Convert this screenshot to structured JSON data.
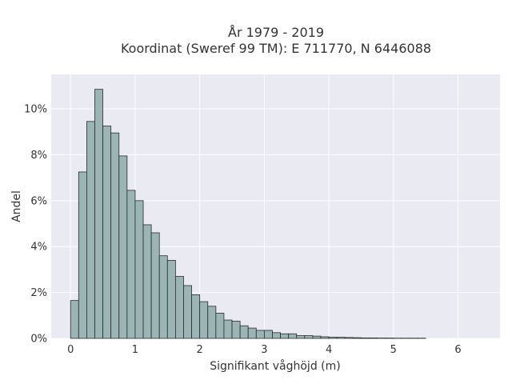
{
  "chart_data": {
    "type": "bar",
    "title_line1": "År 1979 - 2019",
    "title_line2": "Koordinat (Sweref 99 TM): E 711770, N 6446088",
    "xlabel": "Signifikant våghöjd (m)",
    "ylabel": "Andel",
    "xlim": [
      -0.3,
      6.65
    ],
    "ylim": [
      0,
      11.5
    ],
    "x_ticks": [
      0,
      1,
      2,
      3,
      4,
      5,
      6
    ],
    "x_tick_labels": [
      "0",
      "1",
      "2",
      "3",
      "4",
      "5",
      "6"
    ],
    "y_ticks": [
      0,
      2,
      4,
      6,
      8,
      10
    ],
    "y_tick_labels": [
      "0%",
      "2%",
      "4%",
      "6%",
      "8%",
      "10%"
    ],
    "grid": true,
    "bin_width": 0.125,
    "bin_starts": [
      0.0,
      0.125,
      0.25,
      0.375,
      0.5,
      0.625,
      0.75,
      0.875,
      1.0,
      1.125,
      1.25,
      1.375,
      1.5,
      1.625,
      1.75,
      1.875,
      2.0,
      2.125,
      2.25,
      2.375,
      2.5,
      2.625,
      2.75,
      2.875,
      3.0,
      3.125,
      3.25,
      3.375,
      3.5,
      3.625,
      3.75,
      3.875,
      4.0,
      4.125,
      4.25,
      4.375,
      4.5,
      4.625,
      4.75,
      4.875,
      5.0,
      5.125,
      5.25,
      5.375
    ],
    "values": [
      1.65,
      7.25,
      9.45,
      10.85,
      9.25,
      8.95,
      7.95,
      6.45,
      6.0,
      4.95,
      4.6,
      3.6,
      3.4,
      2.7,
      2.3,
      1.9,
      1.6,
      1.4,
      1.1,
      0.8,
      0.75,
      0.55,
      0.45,
      0.35,
      0.35,
      0.25,
      0.2,
      0.2,
      0.12,
      0.12,
      0.1,
      0.07,
      0.05,
      0.05,
      0.04,
      0.03,
      0.02,
      0.02,
      0.015,
      0.015,
      0.01,
      0.01,
      0.01,
      0.01
    ],
    "colors": {
      "bar_fill": "#9bb5b5",
      "bar_edge": "#2a2a2a",
      "plot_bg": "#eaeaf2",
      "grid": "#ffffff"
    }
  }
}
